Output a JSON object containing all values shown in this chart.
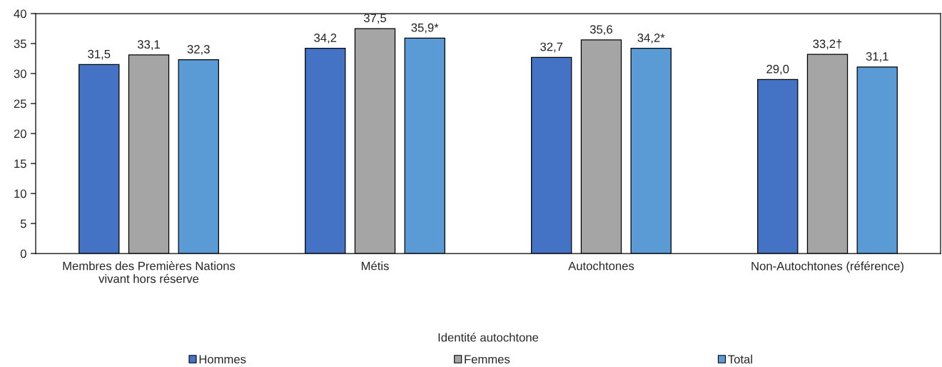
{
  "chart_data": {
    "type": "bar",
    "xlabel": "Identité autochtone",
    "categories": [
      "Membres des Premières Nations\nvivant hors réserve",
      "Métis",
      "Autochtones",
      "Non-Autochtones (référence)"
    ],
    "series": [
      {
        "name": "Hommes",
        "color": "#4472c4",
        "values": [
          31.5,
          34.2,
          32.7,
          29.0
        ],
        "value_labels": [
          "31,5",
          "34,2",
          "32,7",
          "29,0"
        ]
      },
      {
        "name": "Femmes",
        "color": "#a5a5a5",
        "values": [
          33.1,
          37.5,
          35.6,
          33.2
        ],
        "value_labels": [
          "33,1",
          "37,5",
          "35,6",
          "33,2†"
        ]
      },
      {
        "name": "Total",
        "color": "#5b9bd5",
        "values": [
          32.3,
          35.9,
          34.2,
          31.1
        ],
        "value_labels": [
          "32,3",
          "35,9*",
          "34,2*",
          "31,1"
        ]
      }
    ],
    "ylim": [
      0,
      40
    ],
    "yticks": [
      0,
      5,
      10,
      15,
      20,
      25,
      30,
      35,
      40
    ],
    "legend": "bottom"
  }
}
